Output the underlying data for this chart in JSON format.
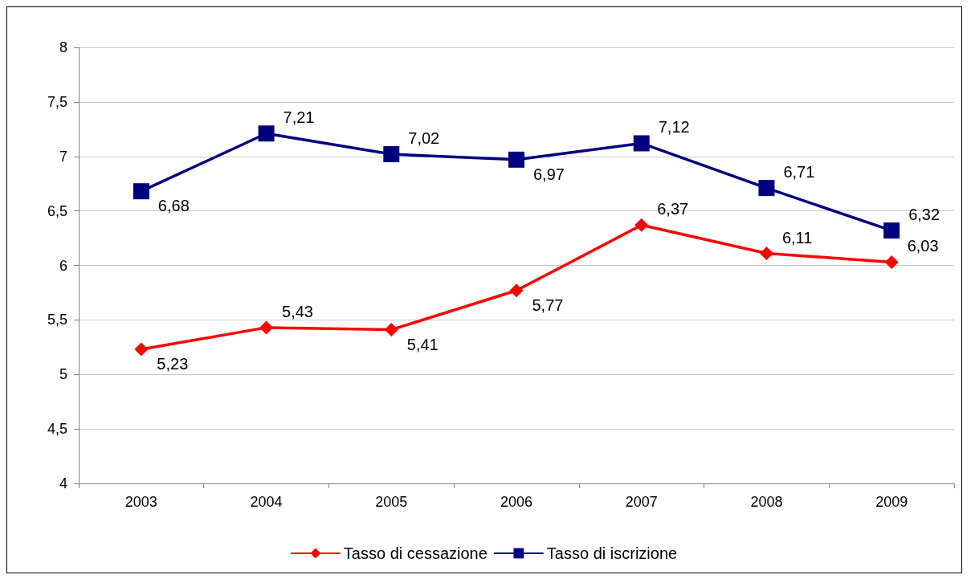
{
  "chart_data": {
    "type": "line",
    "categories": [
      "2003",
      "2004",
      "2005",
      "2006",
      "2007",
      "2008",
      "2009"
    ],
    "series": [
      {
        "name": "Tasso di cessazione",
        "color": "#ff0000",
        "marker": "diamond",
        "values": [
          5.23,
          5.43,
          5.41,
          5.77,
          6.37,
          6.11,
          6.03
        ],
        "value_labels": [
          "5,23",
          "5,43",
          "5,41",
          "5,77",
          "6,37",
          "6,11",
          "6,03"
        ]
      },
      {
        "name": "Tasso di iscrizione",
        "color": "#000080",
        "marker": "square",
        "values": [
          6.68,
          7.21,
          7.02,
          6.97,
          7.12,
          6.71,
          6.32
        ],
        "value_labels": [
          "6,68",
          "7,21",
          "7,02",
          "6,97",
          "7,12",
          "6,71",
          "6,32"
        ]
      }
    ],
    "ylim": [
      4,
      8
    ],
    "yticks": [
      4,
      {
        "value": 4.5,
        "label": "4,5"
      },
      5,
      {
        "value": 5.5,
        "label": "5,5"
      },
      6,
      {
        "value": 6.5,
        "label": "6,5"
      },
      7,
      {
        "value": 7.5,
        "label": "7,5"
      },
      8
    ],
    "grid": "y",
    "legend": "bottom",
    "line_style": "solid"
  }
}
